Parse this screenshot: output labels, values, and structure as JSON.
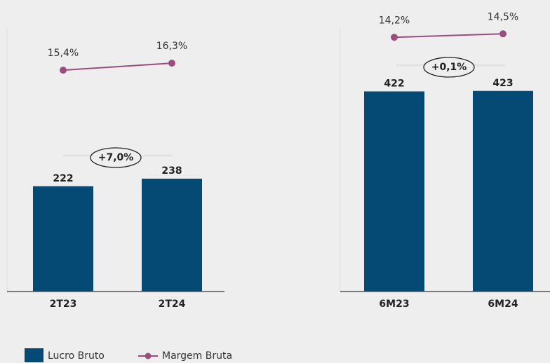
{
  "chart_data": [
    {
      "type": "bar",
      "categories": [
        "2T23",
        "2T24"
      ],
      "series": [
        {
          "name": "Lucro Bruto",
          "color": "#044a74",
          "values": [
            222,
            238
          ]
        },
        {
          "name": "Margem Bruta",
          "color": "#9b4d7d",
          "values": [
            15.4,
            16.3
          ],
          "value_labels": [
            "15,4%",
            "16,3%"
          ],
          "axis": "y2"
        }
      ],
      "ylim": [
        0,
        600
      ],
      "y2lim": [
        -13,
        23.5
      ],
      "annotation": "+7,0%"
    },
    {
      "type": "bar",
      "categories": [
        "6M23",
        "6M24"
      ],
      "series": [
        {
          "color": "#044a74",
          "values": [
            422,
            423
          ]
        },
        {
          "color": "#9b4d7d",
          "values": [
            14.2,
            14.5
          ],
          "value_labels": [
            "14,2%",
            "14,5%"
          ],
          "axis": "y2"
        }
      ],
      "ylim": [
        0,
        600
      ],
      "y2lim": [
        -7.6,
        16.8
      ],
      "annotation": "+0,1%"
    }
  ]
}
